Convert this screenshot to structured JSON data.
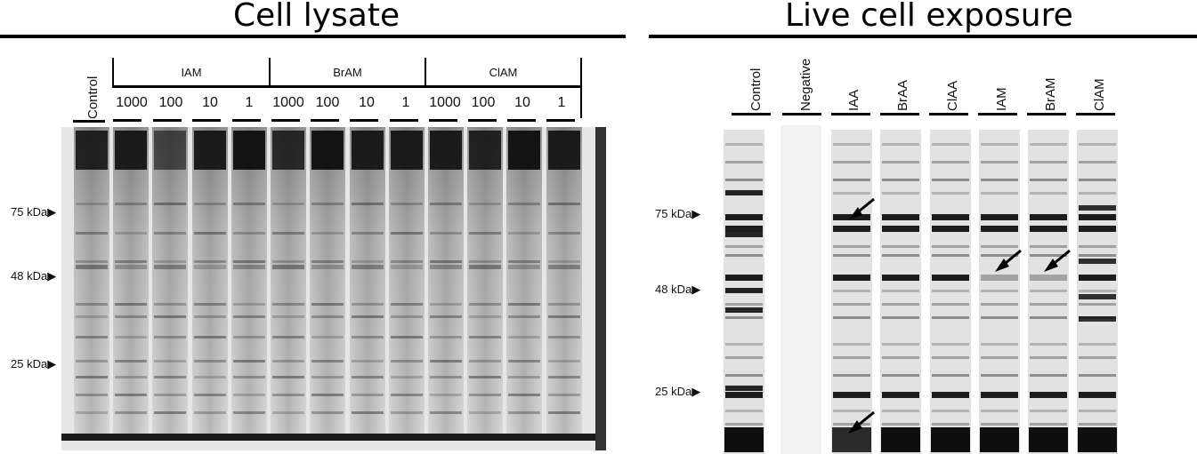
{
  "left_panel": {
    "title": "Cell lysate",
    "lanes": {
      "control": "Control",
      "groups": [
        {
          "label": "IAM",
          "concentrations": [
            "1000",
            "100",
            "10",
            "1"
          ]
        },
        {
          "label": "BrAM",
          "concentrations": [
            "1000",
            "100",
            "10",
            "1"
          ]
        },
        {
          "label": "ClAM",
          "concentrations": [
            "1000",
            "100",
            "10",
            "1"
          ]
        }
      ]
    },
    "markers": [
      "75 kDa▶",
      "48 kDa▶",
      "25 kDa▶"
    ]
  },
  "right_panel": {
    "title": "Live cell exposure",
    "lanes": [
      "Control",
      "Negative",
      "IAA",
      "BrAA",
      "ClAA",
      "IAM",
      "BrAM",
      "ClAM"
    ],
    "markers": [
      "75 kDa▶",
      "48 kDa▶",
      "25 kDa▶"
    ],
    "arrows": [
      "arrow-iaa-upper",
      "arrow-iaa-lower",
      "arrow-iam",
      "arrow-bram"
    ]
  },
  "colors": {
    "band": "#111111",
    "gel_background": "#e9e9e9",
    "rule": "#000000"
  }
}
